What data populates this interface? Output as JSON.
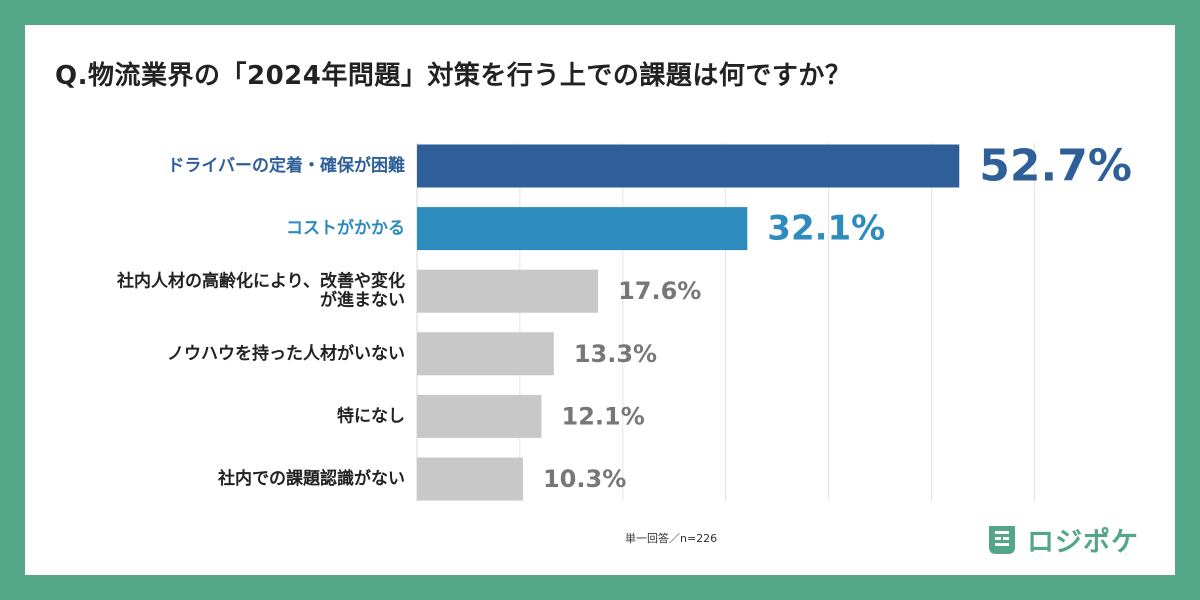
{
  "title": "Q.物流業界の「2024年問題」対策を行う上での課題は何ですか？",
  "note": "単一回答／n=226",
  "logo": {
    "text": "ロジポケ",
    "icon": "logo-chat-icon"
  },
  "colors": {
    "background": "#54a688",
    "primary_bar": "#2f5f98",
    "secondary_bar": "#2e8bbd",
    "other_bar": "#c8c8c8",
    "other_text": "#777777",
    "label_text": "#222222",
    "logo": "#54a688"
  },
  "chart_data": {
    "type": "bar",
    "orientation": "horizontal",
    "title": "Q.物流業界の「2024年問題」対策を行う上での課題は何ですか？",
    "categories": [
      [
        "ドライバーの定着・確保が困難"
      ],
      [
        "コストがかかる"
      ],
      [
        "社内人材の高齢化により、改善や変化",
        "が進まない"
      ],
      [
        "ノウハウを持った人材がいない"
      ],
      [
        "特になし"
      ],
      [
        "社内での課題認識がない"
      ]
    ],
    "values": [
      52.7,
      32.1,
      17.6,
      13.3,
      12.1,
      10.3
    ],
    "value_labels": [
      "52.7%",
      "32.1%",
      "17.6%",
      "13.3%",
      "12.1%",
      "10.3%"
    ],
    "unit": "%",
    "xlim": [
      0,
      60
    ],
    "gridline_values": [
      10,
      20,
      30,
      40,
      50,
      60
    ],
    "grid": true,
    "legend": "none"
  }
}
